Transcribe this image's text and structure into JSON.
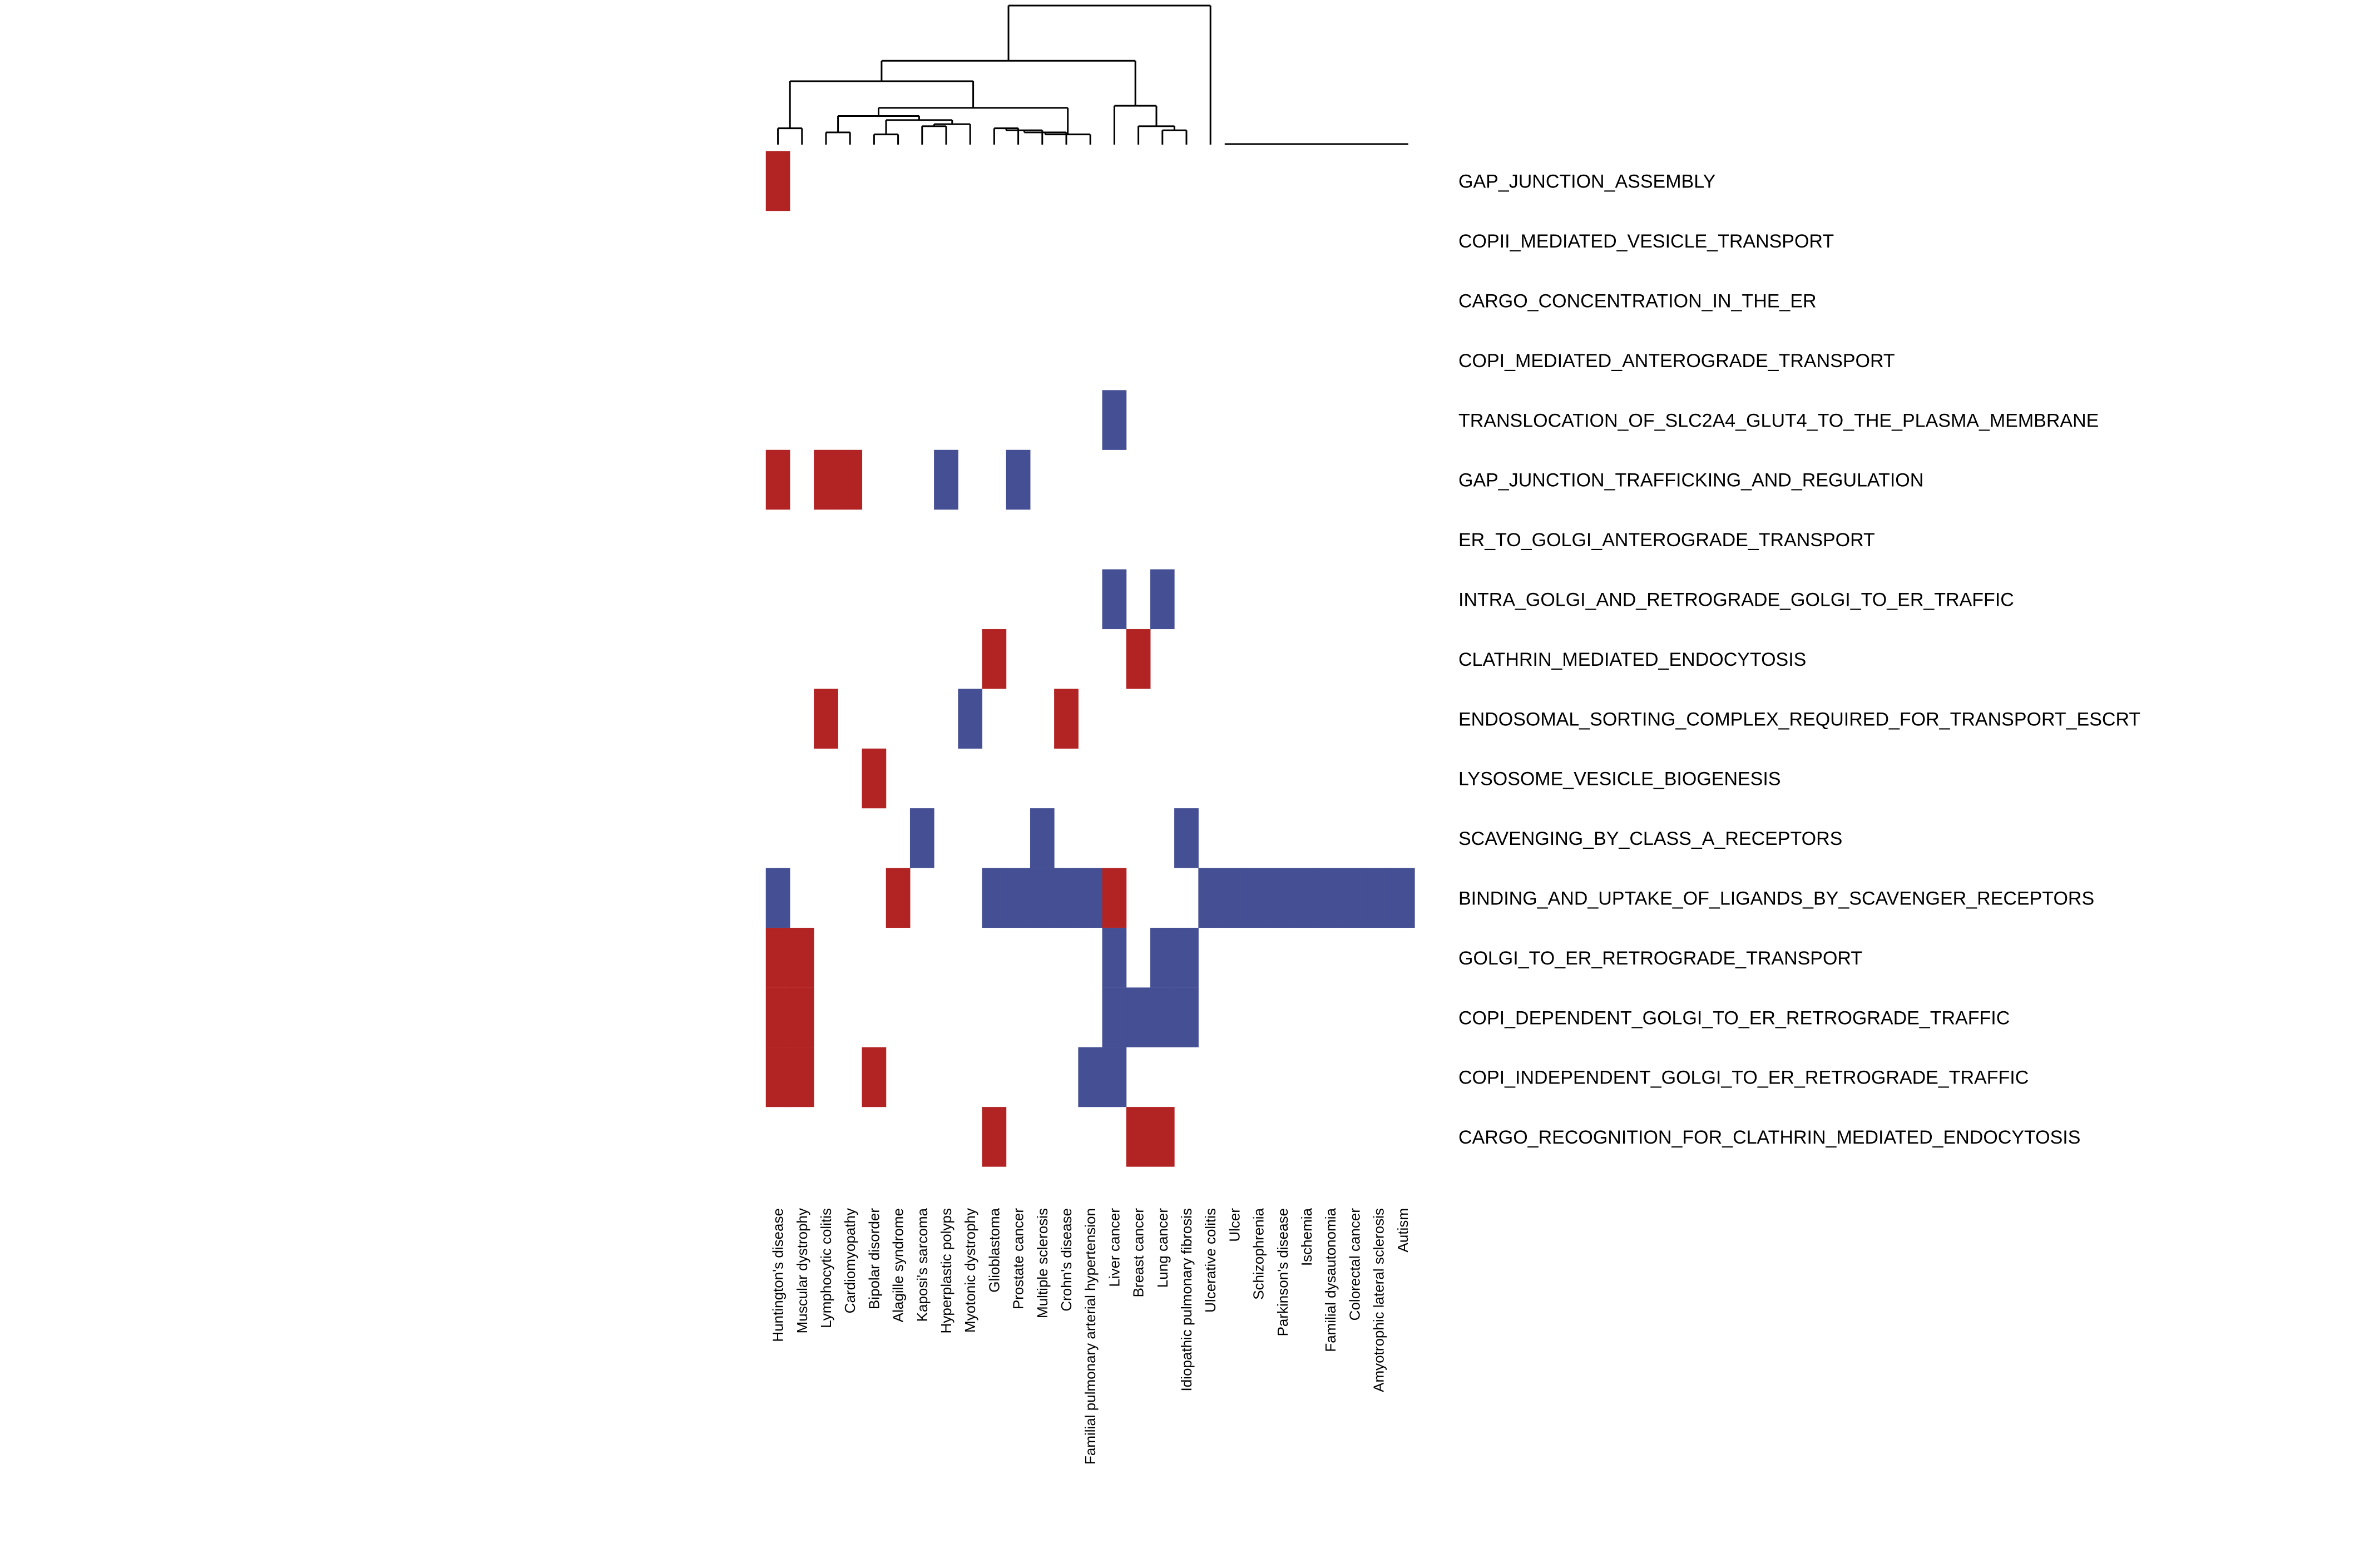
{
  "chart_data": {
    "type": "heatmap",
    "title": "",
    "xlabel": "",
    "ylabel": "",
    "value_legend": {
      "1": "up (red)",
      "-1": "down (blue)",
      "0": "none"
    },
    "colors": {
      "up": "#b22424",
      "down": "#454f94",
      "none": "#ffffff",
      "dendrogram": "#000000"
    },
    "columns": [
      "Huntington's disease",
      "Muscular dystrophy",
      "Lymphocytic colitis",
      "Cardiomyopathy",
      "Bipolar disorder",
      "Alagille syndrome",
      "Kaposi's sarcoma",
      "Hyperplastic polyps",
      "Myotonic dystrophy",
      "Glioblastoma",
      "Prostate cancer",
      "Multiple sclerosis",
      "Crohn's disease",
      "Familial pulmonary arterial hypertension",
      "Liver cancer",
      "Breast cancer",
      "Lung cancer",
      "Idiopathic pulmonary fibrosis",
      "Ulcerative colitis",
      "Ulcer",
      "Schizophrenia",
      "Parkinson's disease",
      "Ischemia",
      "Familial dysautonomia",
      "Colorectal cancer",
      "Amyotrophic lateral sclerosis",
      "Autism"
    ],
    "rows": [
      "GAP_JUNCTION_ASSEMBLY",
      "COPII_MEDIATED_VESICLE_TRANSPORT",
      "CARGO_CONCENTRATION_IN_THE_ER",
      "COPI_MEDIATED_ANTEROGRADE_TRANSPORT",
      "TRANSLOCATION_OF_SLC2A4_GLUT4_TO_THE_PLASMA_MEMBRANE",
      "GAP_JUNCTION_TRAFFICKING_AND_REGULATION",
      "ER_TO_GOLGI_ANTEROGRADE_TRANSPORT",
      "INTRA_GOLGI_AND_RETROGRADE_GOLGI_TO_ER_TRAFFIC",
      "CLATHRIN_MEDIATED_ENDOCYTOSIS",
      "ENDOSOMAL_SORTING_COMPLEX_REQUIRED_FOR_TRANSPORT_ESCRT",
      "LYSOSOME_VESICLE_BIOGENESIS",
      "SCAVENGING_BY_CLASS_A_RECEPTORS",
      "BINDING_AND_UPTAKE_OF_LIGANDS_BY_SCAVENGER_RECEPTORS",
      "GOLGI_TO_ER_RETROGRADE_TRANSPORT",
      "COPI_DEPENDENT_GOLGI_TO_ER_RETROGRADE_TRAFFIC",
      "COPI_INDEPENDENT_GOLGI_TO_ER_RETROGRADE_TRAFFIC",
      "CARGO_RECOGNITION_FOR_CLATHRIN_MEDIATED_ENDOCYTOSIS"
    ],
    "values": [
      [
        1,
        0,
        0,
        0,
        0,
        0,
        0,
        0,
        0,
        0,
        0,
        0,
        0,
        0,
        0,
        0,
        0,
        0,
        0,
        0,
        0,
        0,
        0,
        0,
        0,
        0,
        0
      ],
      [
        0,
        0,
        0,
        0,
        0,
        0,
        0,
        0,
        0,
        0,
        0,
        0,
        0,
        0,
        0,
        0,
        0,
        0,
        0,
        0,
        0,
        0,
        0,
        0,
        0,
        0,
        0
      ],
      [
        0,
        0,
        0,
        0,
        0,
        0,
        0,
        0,
        0,
        0,
        0,
        0,
        0,
        0,
        0,
        0,
        0,
        0,
        0,
        0,
        0,
        0,
        0,
        0,
        0,
        0,
        0
      ],
      [
        0,
        0,
        0,
        0,
        0,
        0,
        0,
        0,
        0,
        0,
        0,
        0,
        0,
        0,
        0,
        0,
        0,
        0,
        0,
        0,
        0,
        0,
        0,
        0,
        0,
        0,
        0
      ],
      [
        0,
        0,
        0,
        0,
        0,
        0,
        0,
        0,
        0,
        0,
        0,
        0,
        0,
        0,
        -1,
        0,
        0,
        0,
        0,
        0,
        0,
        0,
        0,
        0,
        0,
        0,
        0
      ],
      [
        1,
        0,
        1,
        1,
        0,
        0,
        0,
        -1,
        0,
        0,
        -1,
        0,
        0,
        0,
        0,
        0,
        0,
        0,
        0,
        0,
        0,
        0,
        0,
        0,
        0,
        0,
        0
      ],
      [
        0,
        0,
        0,
        0,
        0,
        0,
        0,
        0,
        0,
        0,
        0,
        0,
        0,
        0,
        0,
        0,
        0,
        0,
        0,
        0,
        0,
        0,
        0,
        0,
        0,
        0,
        0
      ],
      [
        0,
        0,
        0,
        0,
        0,
        0,
        0,
        0,
        0,
        0,
        0,
        0,
        0,
        0,
        -1,
        0,
        -1,
        0,
        0,
        0,
        0,
        0,
        0,
        0,
        0,
        0,
        0
      ],
      [
        0,
        0,
        0,
        0,
        0,
        0,
        0,
        0,
        0,
        1,
        0,
        0,
        0,
        0,
        0,
        1,
        0,
        0,
        0,
        0,
        0,
        0,
        0,
        0,
        0,
        0,
        0
      ],
      [
        0,
        0,
        1,
        0,
        0,
        0,
        0,
        0,
        -1,
        0,
        0,
        0,
        1,
        0,
        0,
        0,
        0,
        0,
        0,
        0,
        0,
        0,
        0,
        0,
        0,
        0,
        0
      ],
      [
        0,
        0,
        0,
        0,
        1,
        0,
        0,
        0,
        0,
        0,
        0,
        0,
        0,
        0,
        0,
        0,
        0,
        0,
        0,
        0,
        0,
        0,
        0,
        0,
        0,
        0,
        0
      ],
      [
        0,
        0,
        0,
        0,
        0,
        0,
        -1,
        0,
        0,
        0,
        0,
        -1,
        0,
        0,
        0,
        0,
        0,
        -1,
        0,
        0,
        0,
        0,
        0,
        0,
        0,
        0,
        0
      ],
      [
        -1,
        0,
        0,
        0,
        0,
        1,
        0,
        0,
        0,
        -1,
        -1,
        -1,
        -1,
        -1,
        1,
        0,
        0,
        0,
        -1,
        -1,
        -1,
        -1,
        -1,
        -1,
        -1,
        -1,
        -1
      ],
      [
        1,
        1,
        0,
        0,
        0,
        0,
        0,
        0,
        0,
        0,
        0,
        0,
        0,
        0,
        -1,
        0,
        -1,
        -1,
        0,
        0,
        0,
        0,
        0,
        0,
        0,
        0,
        0
      ],
      [
        1,
        1,
        0,
        0,
        0,
        0,
        0,
        0,
        0,
        0,
        0,
        0,
        0,
        0,
        -1,
        -1,
        -1,
        -1,
        0,
        0,
        0,
        0,
        0,
        0,
        0,
        0,
        0
      ],
      [
        1,
        1,
        0,
        0,
        1,
        0,
        0,
        0,
        0,
        0,
        0,
        0,
        0,
        -1,
        -1,
        0,
        0,
        0,
        0,
        0,
        0,
        0,
        0,
        0,
        0,
        0,
        0
      ],
      [
        0,
        0,
        0,
        0,
        0,
        0,
        0,
        0,
        0,
        1,
        0,
        0,
        0,
        0,
        0,
        1,
        1,
        0,
        0,
        0,
        0,
        0,
        0,
        0,
        0,
        0,
        0
      ]
    ],
    "column_dendrogram": {
      "merges": [
        [
          0,
          1,
          0.08
        ],
        [
          2,
          3,
          0.06
        ],
        [
          4,
          5,
          0.05
        ],
        [
          6,
          7,
          0.09
        ],
        [
          -4,
          8,
          0.1
        ],
        [
          -3,
          -5,
          0.12
        ],
        [
          -2,
          -6,
          0.14
        ],
        [
          9,
          10,
          0.08
        ],
        [
          -8,
          11,
          0.07
        ],
        [
          -9,
          12,
          0.06
        ],
        [
          -10,
          13,
          0.05
        ],
        [
          -7,
          -11,
          0.18
        ],
        [
          -1,
          -12,
          0.31
        ],
        [
          16,
          17,
          0.07
        ],
        [
          15,
          -14,
          0.09
        ],
        [
          14,
          -15,
          0.19
        ],
        [
          -13,
          -16,
          0.41
        ],
        [
          -17,
          18,
          0.68
        ]
      ],
      "flat_leaves": [
        19,
        20,
        21,
        22,
        23,
        24,
        25,
        26
      ],
      "flat_height": 0.0,
      "max_height": 0.68
    }
  }
}
